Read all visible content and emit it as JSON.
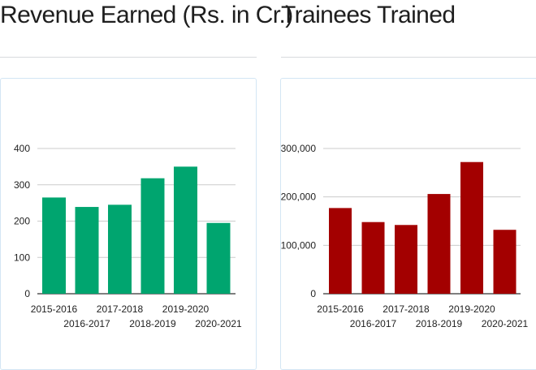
{
  "panels": [
    {
      "title": "Revenue Earned (Rs. in Cr.)"
    },
    {
      "title": "Trainees Trained"
    }
  ],
  "chart_data": [
    {
      "type": "bar",
      "title": "Revenue Earned (Rs. in Cr.)",
      "xlabel": "",
      "ylabel": "",
      "categories": [
        "2015-2016",
        "2016-2017",
        "2017-2018",
        "2018-2019",
        "2019-2020",
        "2020-2021"
      ],
      "values": [
        265,
        239,
        245,
        318,
        350,
        195
      ],
      "ylim": [
        0,
        400
      ],
      "yticks": [
        0,
        100,
        200,
        300,
        400
      ],
      "ytick_labels": [
        "0",
        "100",
        "200",
        "300",
        "400"
      ],
      "grid": true,
      "legend": "none",
      "bar_color": "#00a56f"
    },
    {
      "type": "bar",
      "title": "Trainees Trained",
      "xlabel": "",
      "ylabel": "",
      "categories": [
        "2015-2016",
        "2016-2017",
        "2017-2018",
        "2018-2019",
        "2019-2020",
        "2020-2021"
      ],
      "values": [
        177000,
        148000,
        142000,
        206000,
        272000,
        132000
      ],
      "ylim": [
        0,
        300000
      ],
      "yticks": [
        0,
        100000,
        200000,
        300000
      ],
      "ytick_labels": [
        "0",
        "100,000",
        "200,000",
        "300,000"
      ],
      "grid": true,
      "legend": "none",
      "bar_color": "#a30000"
    }
  ]
}
